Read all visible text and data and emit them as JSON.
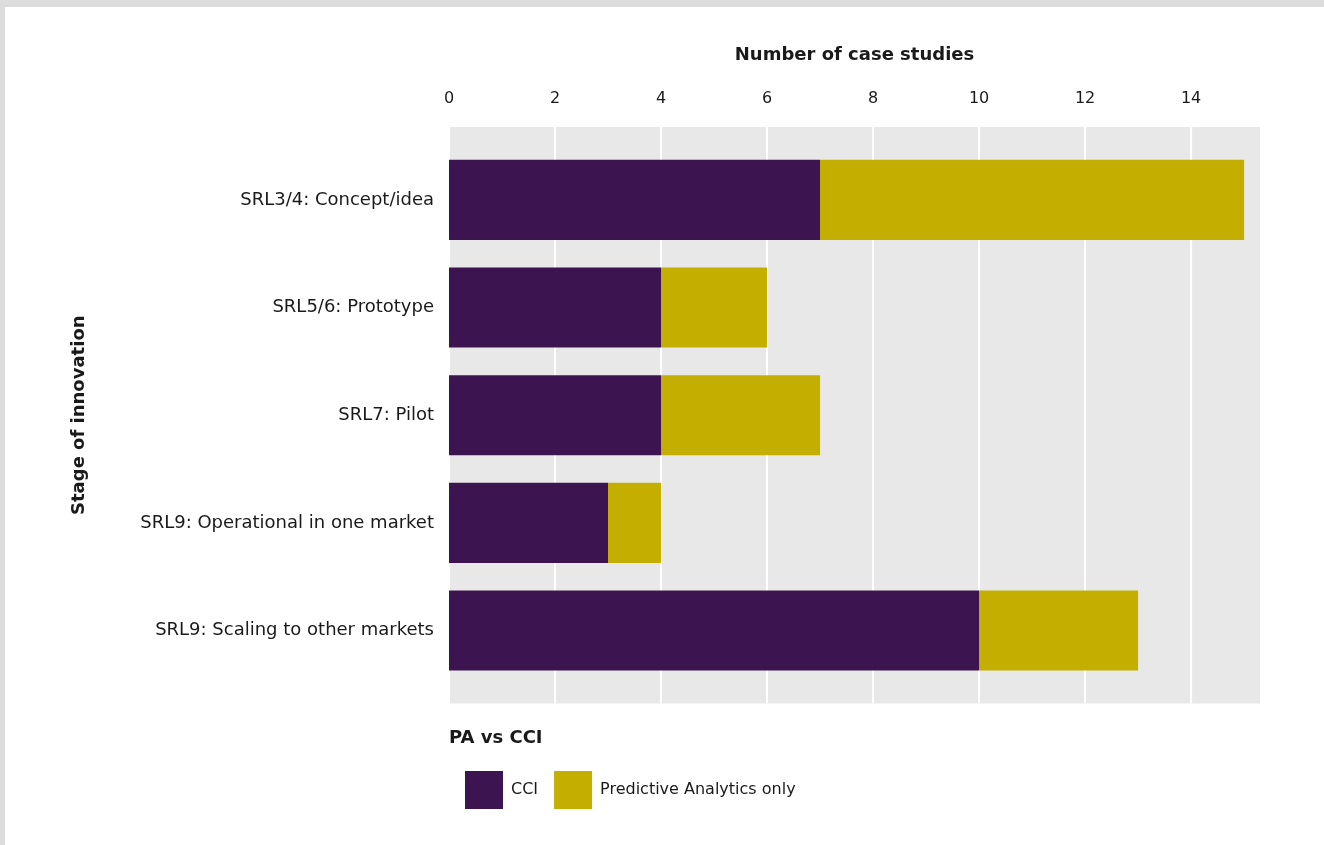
{
  "chart_data": {
    "type": "bar",
    "orientation": "horizontal",
    "stacked": true,
    "xlabel": "Number of case studies",
    "ylabel": "Stage of innovation",
    "legend_title": "PA vs CCI",
    "categories": [
      "SRL3/4: Concept/idea",
      "SRL5/6: Prototype",
      "SRL7: Pilot",
      "SRL9: Operational in one market",
      "SRL9: Scaling to other markets"
    ],
    "series": [
      {
        "name": "CCI",
        "color": "#3c1450",
        "values": [
          7,
          4,
          4,
          3,
          10
        ]
      },
      {
        "name": "Predictive Analytics only",
        "color": "#c4af00",
        "values": [
          8,
          2,
          3,
          1,
          3
        ]
      }
    ],
    "xlim": [
      0,
      15.3
    ],
    "xticks": [
      0,
      2,
      4,
      6,
      8,
      10,
      12,
      14
    ],
    "grid": "x",
    "legend": "bottom left"
  }
}
